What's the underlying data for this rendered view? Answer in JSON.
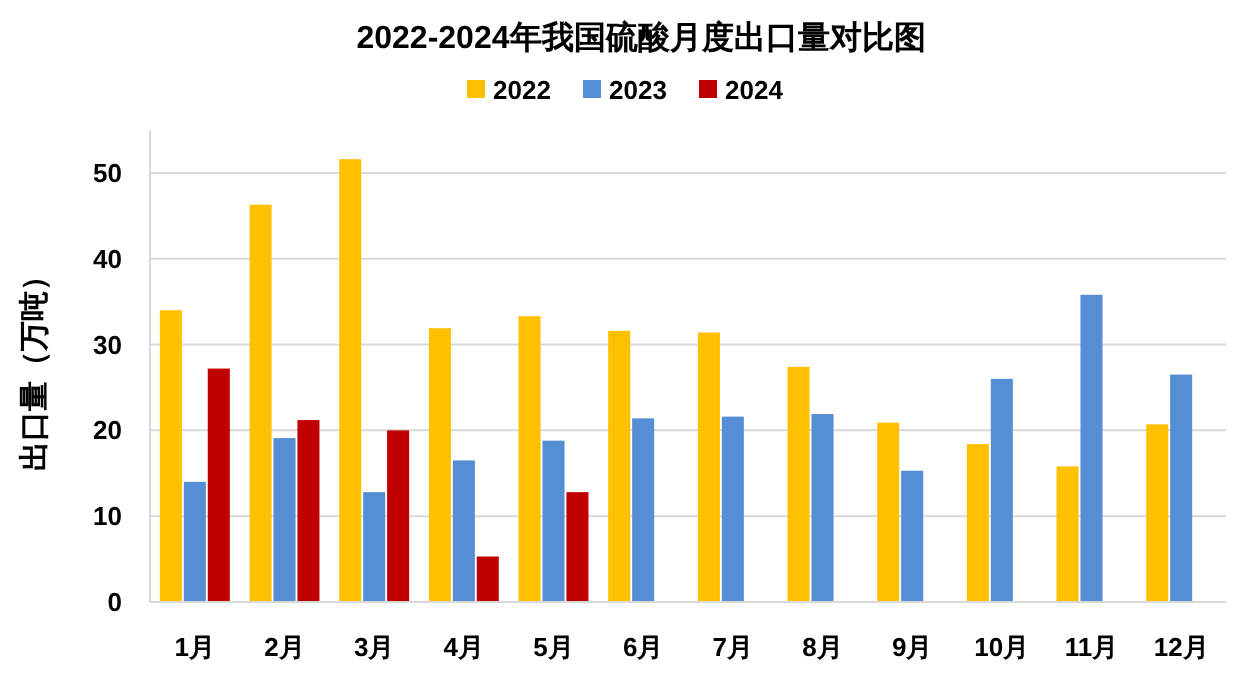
{
  "chart_data": {
    "type": "bar",
    "title": "2022-2024年我国硫酸月度出口量对比图",
    "ylabel": "出口量（万吨）",
    "categories": [
      "1月",
      "2月",
      "3月",
      "4月",
      "5月",
      "6月",
      "7月",
      "8月",
      "9月",
      "10月",
      "11月",
      "12月"
    ],
    "series": [
      {
        "name": "2022",
        "color": "#ffc000",
        "values": [
          34,
          46.3,
          51.6,
          31.9,
          33.3,
          31.6,
          31.4,
          27.4,
          20.9,
          18.4,
          15.8,
          20.7
        ]
      },
      {
        "name": "2023",
        "color": "#558ed5",
        "values": [
          14,
          19.1,
          12.8,
          16.5,
          18.8,
          21.4,
          21.6,
          21.9,
          15.3,
          26,
          35.8,
          26.5
        ]
      },
      {
        "name": "2024",
        "color": "#c00000",
        "values": [
          27.2,
          21.2,
          20,
          5.3,
          12.8,
          null,
          null,
          null,
          null,
          null,
          null,
          null
        ]
      }
    ],
    "ylim": [
      0,
      55
    ],
    "yticks": [
      0,
      10,
      20,
      30,
      40,
      50
    ],
    "grid": "y",
    "legend": "top"
  }
}
